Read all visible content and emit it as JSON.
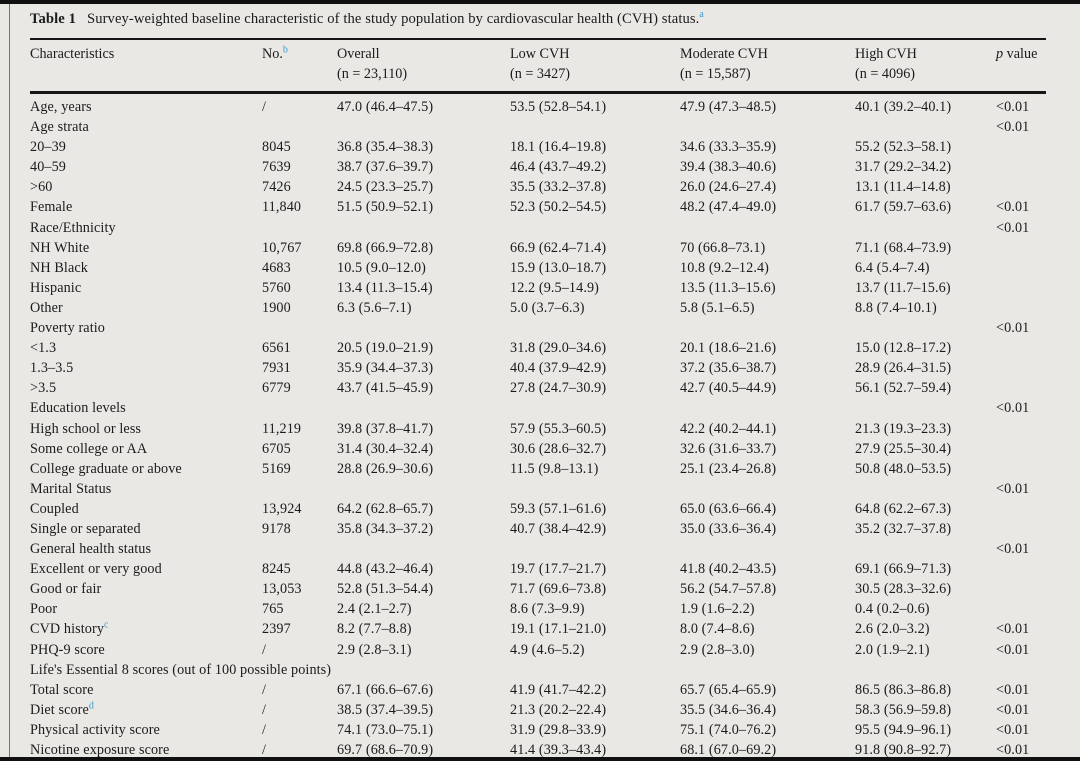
{
  "page": {
    "background": "#e9e8e5",
    "text_color": "#1b1b1b",
    "rule_color": "#161616",
    "superscript_color": "#3a9cce"
  },
  "title": {
    "label": "Table 1",
    "text": "Survey-weighted baseline characteristic of the study population by cardiovascular health (CVH) status.",
    "sup": "a"
  },
  "table": {
    "columns": [
      {
        "label": "Characteristics"
      },
      {
        "label": "No.",
        "sup": "b"
      },
      {
        "label": "Overall",
        "sub": "(n = 23,110)"
      },
      {
        "label": "Low CVH",
        "sub": "(n = 3427)"
      },
      {
        "label": "Moderate CVH",
        "sub": "(n = 15,587)"
      },
      {
        "label": "High CVH",
        "sub": "(n = 4096)"
      },
      {
        "italic": "p",
        "label": "value"
      }
    ],
    "rows": [
      {
        "label": "Age, years",
        "no": "/",
        "overall": "47.0 (46.4–47.5)",
        "low": "53.5 (52.8–54.1)",
        "moderate": "47.9 (47.3–48.5)",
        "high": "40.1 (39.2–40.1)",
        "p": "<0.01"
      },
      {
        "label": "Age strata",
        "p": "<0.01"
      },
      {
        "label": "20–39",
        "no": "8045",
        "overall": "36.8 (35.4–38.3)",
        "low": "18.1 (16.4–19.8)",
        "moderate": "34.6 (33.3–35.9)",
        "high": "55.2 (52.3–58.1)"
      },
      {
        "label": "40–59",
        "no": "7639",
        "overall": "38.7 (37.6–39.7)",
        "low": "46.4 (43.7–49.2)",
        "moderate": "39.4 (38.3–40.6)",
        "high": "31.7 (29.2–34.2)"
      },
      {
        "label": ">60",
        "no": "7426",
        "overall": "24.5 (23.3–25.7)",
        "low": "35.5 (33.2–37.8)",
        "moderate": "26.0 (24.6–27.4)",
        "high": "13.1 (11.4–14.8)"
      },
      {
        "label": "Female",
        "no": "11,840",
        "overall": "51.5 (50.9–52.1)",
        "low": "52.3 (50.2–54.5)",
        "moderate": "48.2 (47.4–49.0)",
        "high": "61.7 (59.7–63.6)",
        "p": "<0.01"
      },
      {
        "label": "Race/Ethnicity",
        "p": "<0.01"
      },
      {
        "label": "NH White",
        "no": "10,767",
        "overall": "69.8 (66.9–72.8)",
        "low": "66.9 (62.4–71.4)",
        "moderate": "70 (66.8–73.1)",
        "high": "71.1 (68.4–73.9)"
      },
      {
        "label": "NH Black",
        "no": "4683",
        "overall": "10.5 (9.0–12.0)",
        "low": "15.9 (13.0–18.7)",
        "moderate": "10.8 (9.2–12.4)",
        "high": "6.4 (5.4–7.4)"
      },
      {
        "label": "Hispanic",
        "no": "5760",
        "overall": "13.4 (11.3–15.4)",
        "low": "12.2 (9.5–14.9)",
        "moderate": "13.5 (11.3–15.6)",
        "high": "13.7 (11.7–15.6)"
      },
      {
        "label": "Other",
        "no": "1900",
        "overall": "6.3 (5.6–7.1)",
        "low": "5.0 (3.7–6.3)",
        "moderate": "5.8 (5.1–6.5)",
        "high": "8.8 (7.4–10.1)"
      },
      {
        "label": "Poverty ratio",
        "p": "<0.01"
      },
      {
        "label": "<1.3",
        "no": "6561",
        "overall": "20.5 (19.0–21.9)",
        "low": "31.8 (29.0–34.6)",
        "moderate": "20.1 (18.6–21.6)",
        "high": "15.0 (12.8–17.2)"
      },
      {
        "label": "1.3–3.5",
        "no": "7931",
        "overall": "35.9 (34.4–37.3)",
        "low": "40.4 (37.9–42.9)",
        "moderate": "37.2 (35.6–38.7)",
        "high": "28.9 (26.4–31.5)"
      },
      {
        "label": ">3.5",
        "no": "6779",
        "overall": "43.7 (41.5–45.9)",
        "low": "27.8 (24.7–30.9)",
        "moderate": "42.7 (40.5–44.9)",
        "high": "56.1 (52.7–59.4)"
      },
      {
        "label": "Education levels",
        "p": "<0.01"
      },
      {
        "label": "High school or less",
        "no": "11,219",
        "overall": "39.8 (37.8–41.7)",
        "low": "57.9 (55.3–60.5)",
        "moderate": "42.2 (40.2–44.1)",
        "high": "21.3 (19.3–23.3)"
      },
      {
        "label": "Some college or AA",
        "no": "6705",
        "overall": "31.4 (30.4–32.4)",
        "low": "30.6 (28.6–32.7)",
        "moderate": "32.6 (31.6–33.7)",
        "high": "27.9 (25.5–30.4)"
      },
      {
        "label": "College graduate or above",
        "no": "5169",
        "overall": "28.8 (26.9–30.6)",
        "low": "11.5 (9.8–13.1)",
        "moderate": "25.1 (23.4–26.8)",
        "high": "50.8 (48.0–53.5)"
      },
      {
        "label": "Marital Status",
        "p": "<0.01"
      },
      {
        "label": "Coupled",
        "no": "13,924",
        "overall": "64.2 (62.8–65.7)",
        "low": "59.3 (57.1–61.6)",
        "moderate": "65.0 (63.6–66.4)",
        "high": "64.8 (62.2–67.3)"
      },
      {
        "label": "Single or separated",
        "no": "9178",
        "overall": "35.8 (34.3–37.2)",
        "low": "40.7 (38.4–42.9)",
        "moderate": "35.0 (33.6–36.4)",
        "high": "35.2 (32.7–37.8)"
      },
      {
        "label": "General health status",
        "p": "<0.01"
      },
      {
        "label": "Excellent or very good",
        "no": "8245",
        "overall": "44.8 (43.2–46.4)",
        "low": "19.7 (17.7–21.7)",
        "moderate": "41.8 (40.2–43.5)",
        "high": "69.1 (66.9–71.3)"
      },
      {
        "label": "Good or fair",
        "no": "13,053",
        "overall": "52.8 (51.3–54.4)",
        "low": "71.7 (69.6–73.8)",
        "moderate": "56.2 (54.7–57.8)",
        "high": "30.5 (28.3–32.6)"
      },
      {
        "label": "Poor",
        "no": "765",
        "overall": "2.4 (2.1–2.7)",
        "low": "8.6 (7.3–9.9)",
        "moderate": "1.9 (1.6–2.2)",
        "high": "0.4 (0.2–0.6)"
      },
      {
        "label": "CVD history",
        "sup": "c",
        "no": "2397",
        "overall": "8.2 (7.7–8.8)",
        "low": "19.1 (17.1–21.0)",
        "moderate": "8.0 (7.4–8.6)",
        "high": "2.6 (2.0–3.2)",
        "p": "<0.01"
      },
      {
        "label": "PHQ-9 score",
        "no": "/",
        "overall": "2.9 (2.8–3.1)",
        "low": "4.9 (4.6–5.2)",
        "moderate": "2.9 (2.8–3.0)",
        "high": "2.0 (1.9–2.1)",
        "p": "<0.01"
      },
      {
        "label": "Life's Essential 8 scores (out of 100 possible points)",
        "span": true
      },
      {
        "label": "Total score",
        "no": "/",
        "overall": "67.1 (66.6–67.6)",
        "low": "41.9 (41.7–42.2)",
        "moderate": "65.7 (65.4–65.9)",
        "high": "86.5 (86.3–86.8)",
        "p": "<0.01"
      },
      {
        "label": "Diet score",
        "sup": "d",
        "no": "/",
        "overall": "38.5 (37.4–39.5)",
        "low": "21.3 (20.2–22.4)",
        "moderate": "35.5 (34.6–36.4)",
        "high": "58.3 (56.9–59.8)",
        "p": "<0.01"
      },
      {
        "label": "Physical activity score",
        "no": "/",
        "overall": "74.1 (73.0–75.1)",
        "low": "31.9 (29.8–33.9)",
        "moderate": "75.1 (74.0–76.2)",
        "high": "95.5 (94.9–96.1)",
        "p": "<0.01"
      },
      {
        "label": "Nicotine exposure score",
        "no": "/",
        "overall": "69.7 (68.6–70.9)",
        "low": "41.4 (39.3–43.4)",
        "moderate": "68.1 (67.0–69.2)",
        "high": "91.8 (90.8–92.7)",
        "p": "<0.01"
      }
    ]
  }
}
